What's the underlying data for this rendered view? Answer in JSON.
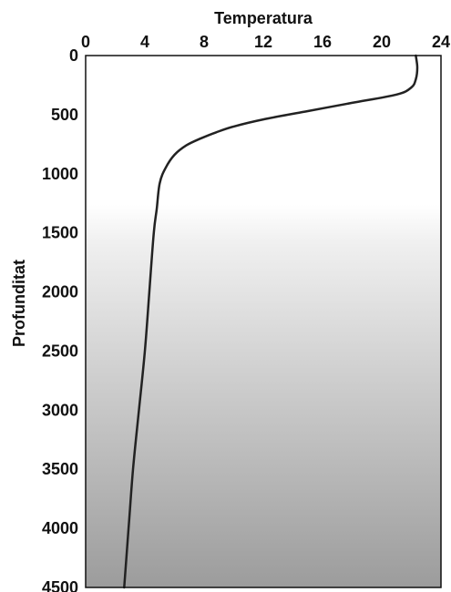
{
  "chart_data": {
    "type": "line",
    "xlabel": "Temperatura",
    "ylabel": "Profunditat",
    "xlim": [
      0,
      24
    ],
    "ylim": [
      0,
      4500
    ],
    "y_inverted": true,
    "x_axis_position": "top",
    "x_ticks": [
      0,
      4,
      8,
      12,
      16,
      20,
      24
    ],
    "y_ticks": [
      0,
      500,
      1000,
      1500,
      2000,
      2500,
      3000,
      3500,
      4000,
      4500
    ],
    "grid": false,
    "legend": "none",
    "background": "vertical gradient, white at top to gray at bottom",
    "line_color": "#222222",
    "series": [
      {
        "x": [
          22.3,
          22.4,
          22.3,
          22.0,
          21.0,
          18.0,
          15.0,
          12.0,
          10.0,
          8.8,
          7.8,
          6.8,
          6.0,
          5.4,
          5.0,
          4.8,
          4.6,
          4.3,
          4.0,
          3.6,
          3.2,
          2.9,
          2.6
        ],
        "y": [
          0,
          100,
          200,
          270,
          330,
          400,
          470,
          540,
          600,
          650,
          700,
          760,
          840,
          950,
          1080,
          1300,
          1500,
          2000,
          2500,
          3000,
          3500,
          4000,
          4500
        ]
      }
    ]
  }
}
